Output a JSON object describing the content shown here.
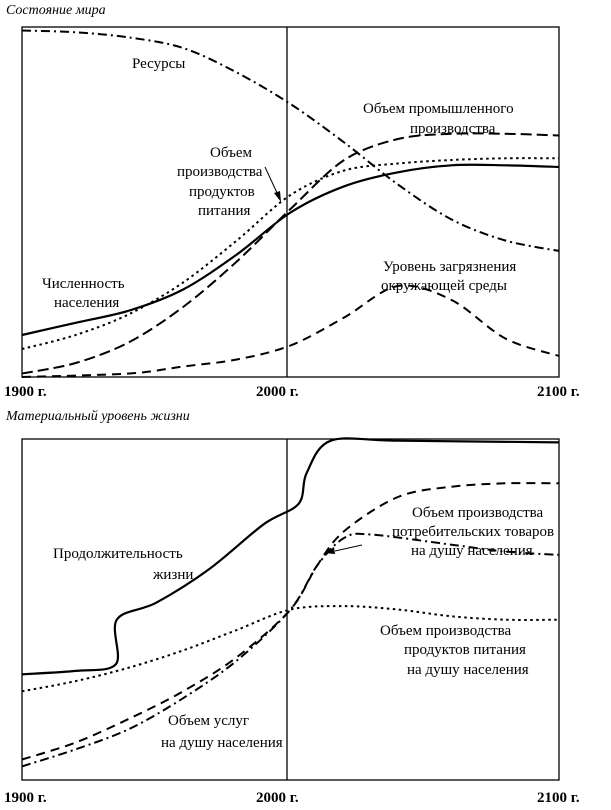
{
  "chart_data": [
    {
      "type": "line",
      "title": "Состояние мира",
      "x_ticks": [
        "1900 г.",
        "2000 г.",
        "2100 г."
      ],
      "xlim": [
        1900,
        2100
      ],
      "ylim": [
        0,
        1
      ],
      "grid": false,
      "series": [
        {
          "name": "Ресурсы",
          "style": "dash-dot",
          "points": [
            [
              1900,
              0.99
            ],
            [
              1920,
              0.985
            ],
            [
              1940,
              0.97
            ],
            [
              1960,
              0.94
            ],
            [
              1980,
              0.87
            ],
            [
              2000,
              0.78
            ],
            [
              2020,
              0.67
            ],
            [
              2040,
              0.55
            ],
            [
              2060,
              0.45
            ],
            [
              2080,
              0.39
            ],
            [
              2100,
              0.36
            ]
          ]
        },
        {
          "name": "Объем промышленного производства",
          "style": "long-dash",
          "points": [
            [
              1900,
              0.01
            ],
            [
              1920,
              0.04
            ],
            [
              1940,
              0.1
            ],
            [
              1960,
              0.2
            ],
            [
              1980,
              0.33
            ],
            [
              2000,
              0.48
            ],
            [
              2020,
              0.62
            ],
            [
              2040,
              0.68
            ],
            [
              2060,
              0.695
            ],
            [
              2080,
              0.695
            ],
            [
              2100,
              0.69
            ]
          ]
        },
        {
          "name": "Объем производства продуктов питания",
          "style": "dotted",
          "points": [
            [
              1900,
              0.08
            ],
            [
              1920,
              0.12
            ],
            [
              1940,
              0.18
            ],
            [
              1960,
              0.27
            ],
            [
              1980,
              0.39
            ],
            [
              2000,
              0.52
            ],
            [
              2020,
              0.59
            ],
            [
              2040,
              0.61
            ],
            [
              2060,
              0.62
            ],
            [
              2080,
              0.625
            ],
            [
              2100,
              0.625
            ]
          ]
        },
        {
          "name": "Численность населения",
          "style": "solid",
          "points": [
            [
              1900,
              0.12
            ],
            [
              1920,
              0.155
            ],
            [
              1940,
              0.19
            ],
            [
              1960,
              0.25
            ],
            [
              1980,
              0.35
            ],
            [
              2000,
              0.47
            ],
            [
              2020,
              0.545
            ],
            [
              2040,
              0.585
            ],
            [
              2060,
              0.605
            ],
            [
              2080,
              0.605
            ],
            [
              2100,
              0.6
            ]
          ]
        },
        {
          "name": "Уровень загрязнения окружающей среды",
          "style": "dash",
          "points": [
            [
              1900,
              0.0
            ],
            [
              1940,
              0.01
            ],
            [
              1960,
              0.03
            ],
            [
              1980,
              0.05
            ],
            [
              2000,
              0.09
            ],
            [
              2020,
              0.17
            ],
            [
              2040,
              0.26
            ],
            [
              2060,
              0.22
            ],
            [
              2080,
              0.11
            ],
            [
              2100,
              0.06
            ]
          ]
        }
      ],
      "annotations": {
        "resources": "Ресурсы",
        "industry_1": "Объем промышленного",
        "industry_2": "производства",
        "food_1": "Объем",
        "food_2": "производства",
        "food_3": "продуктов",
        "food_4": "питания",
        "pop_1": "Численность",
        "pop_2": "населения",
        "pollution_1": "Уровень загрязнения",
        "pollution_2": "окружающей среды"
      }
    },
    {
      "type": "line",
      "title": "Материальный уровень жизни",
      "x_ticks": [
        "1900 г.",
        "2000 г.",
        "2100 г."
      ],
      "xlim": [
        1900,
        2100
      ],
      "ylim": [
        0,
        1
      ],
      "grid": false,
      "series": [
        {
          "name": "Продолжительность жизни",
          "style": "solid",
          "points": [
            [
              1900,
              0.31
            ],
            [
              1920,
              0.32
            ],
            [
              1935,
              0.34
            ],
            [
              1935.3,
              0.47
            ],
            [
              1950,
              0.52
            ],
            [
              1970,
              0.62
            ],
            [
              1990,
              0.75
            ],
            [
              2003,
              0.81
            ],
            [
              2006,
              0.9
            ],
            [
              2015,
              0.995
            ],
            [
              2040,
              0.995
            ],
            [
              2100,
              0.99
            ]
          ]
        },
        {
          "name": "Объем производства потребительских товаров на душу населения",
          "style": "dash",
          "points": [
            [
              1900,
              0.06
            ],
            [
              1920,
              0.11
            ],
            [
              1940,
              0.18
            ],
            [
              1960,
              0.26
            ],
            [
              1980,
              0.36
            ],
            [
              2000,
              0.5
            ],
            [
              2010,
              0.63
            ],
            [
              2020,
              0.73
            ],
            [
              2040,
              0.83
            ],
            [
              2060,
              0.86
            ],
            [
              2080,
              0.87
            ],
            [
              2100,
              0.87
            ]
          ]
        },
        {
          "name": "Объем услуг на душу населения",
          "style": "dash-dot",
          "points": [
            [
              1900,
              0.04
            ],
            [
              1920,
              0.09
            ],
            [
              1940,
              0.15
            ],
            [
              1960,
              0.24
            ],
            [
              1980,
              0.35
            ],
            [
              2000,
              0.5
            ],
            [
              2010,
              0.63
            ],
            [
              2020,
              0.71
            ],
            [
              2030,
              0.72
            ],
            [
              2060,
              0.69
            ],
            [
              2080,
              0.67
            ],
            [
              2100,
              0.66
            ]
          ]
        },
        {
          "name": "Объем производства продуктов питания на душу населения",
          "style": "dotted",
          "points": [
            [
              1900,
              0.26
            ],
            [
              1920,
              0.29
            ],
            [
              1940,
              0.33
            ],
            [
              1960,
              0.38
            ],
            [
              1980,
              0.44
            ],
            [
              2000,
              0.5
            ],
            [
              2020,
              0.51
            ],
            [
              2040,
              0.5
            ],
            [
              2060,
              0.48
            ],
            [
              2080,
              0.47
            ],
            [
              2100,
              0.47
            ]
          ]
        }
      ],
      "annotations": {
        "life_1": "Продолжительность",
        "life_2": "жизни",
        "goods_1": "Объем производства",
        "goods_2": "потребительских товаров",
        "goods_3": "на душу населения",
        "food_1": "Объем производства",
        "food_2": "продуктов питания",
        "food_3": "на душу населения",
        "services_1": "Объем услуг",
        "services_2": "на душу населения"
      }
    }
  ]
}
